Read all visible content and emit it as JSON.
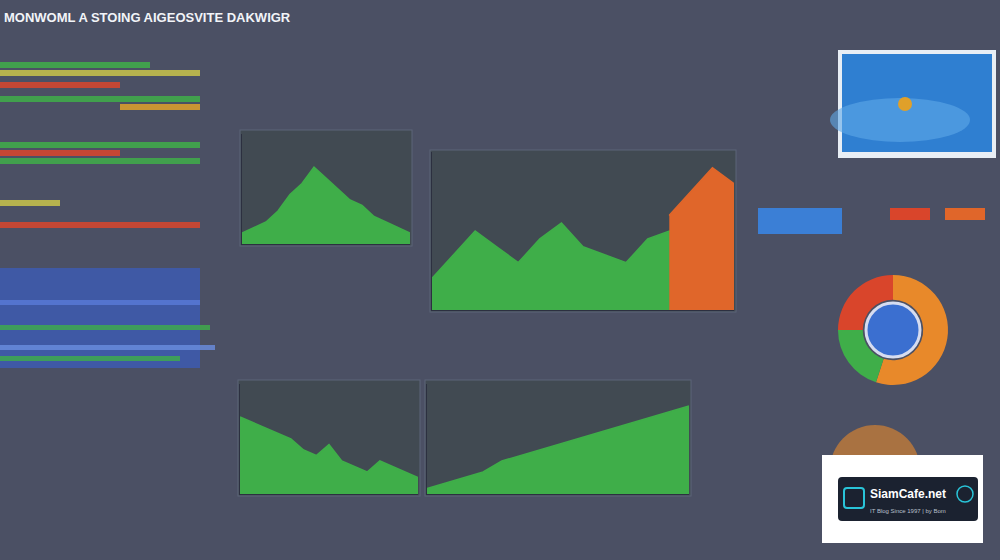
{
  "header": {
    "title": "MONWOML A STOING AIGEOSVITE DAKWIGR"
  },
  "chart_data": [
    {
      "type": "area",
      "ylim": [
        0,
        100
      ],
      "tick_labels": false,
      "series": [
        {
          "color": "#3fae49",
          "values": [
            10,
            15,
            20,
            30,
            45,
            55,
            70,
            60,
            50,
            40,
            35,
            25,
            20,
            15,
            10
          ]
        }
      ]
    },
    {
      "type": "area",
      "ylim": [
        0,
        100
      ],
      "tick_labels": false,
      "series": [
        {
          "color": "#3fae49",
          "values": [
            20,
            35,
            50,
            40,
            30,
            45,
            55,
            40,
            35,
            30,
            45,
            50,
            40,
            35,
            30
          ]
        },
        {
          "color": "#e0662a",
          "values": [
            null,
            null,
            null,
            null,
            null,
            null,
            null,
            null,
            null,
            null,
            null,
            60,
            75,
            90,
            80
          ]
        }
      ]
    },
    {
      "type": "area",
      "ylim": [
        0,
        100
      ],
      "tick_labels": false,
      "series": [
        {
          "color": "#3fae49",
          "values": [
            70,
            65,
            60,
            55,
            50,
            40,
            35,
            45,
            30,
            25,
            20,
            30,
            25,
            20,
            15
          ]
        }
      ]
    },
    {
      "type": "area",
      "ylim": [
        0,
        100
      ],
      "tick_labels": false,
      "series": [
        {
          "color": "#3fae49",
          "values": [
            5,
            10,
            15,
            20,
            30,
            35,
            40,
            45,
            50,
            55,
            60,
            65,
            70,
            75,
            80
          ]
        }
      ]
    },
    {
      "type": "pie",
      "values": [
        55,
        25,
        20
      ],
      "colors": [
        "#e8892a",
        "#d9452b",
        "#3fae49"
      ]
    }
  ],
  "logo": {
    "name": "SiamCafe.net",
    "tagline": "IT Blog Since 1997 | by Bom"
  }
}
